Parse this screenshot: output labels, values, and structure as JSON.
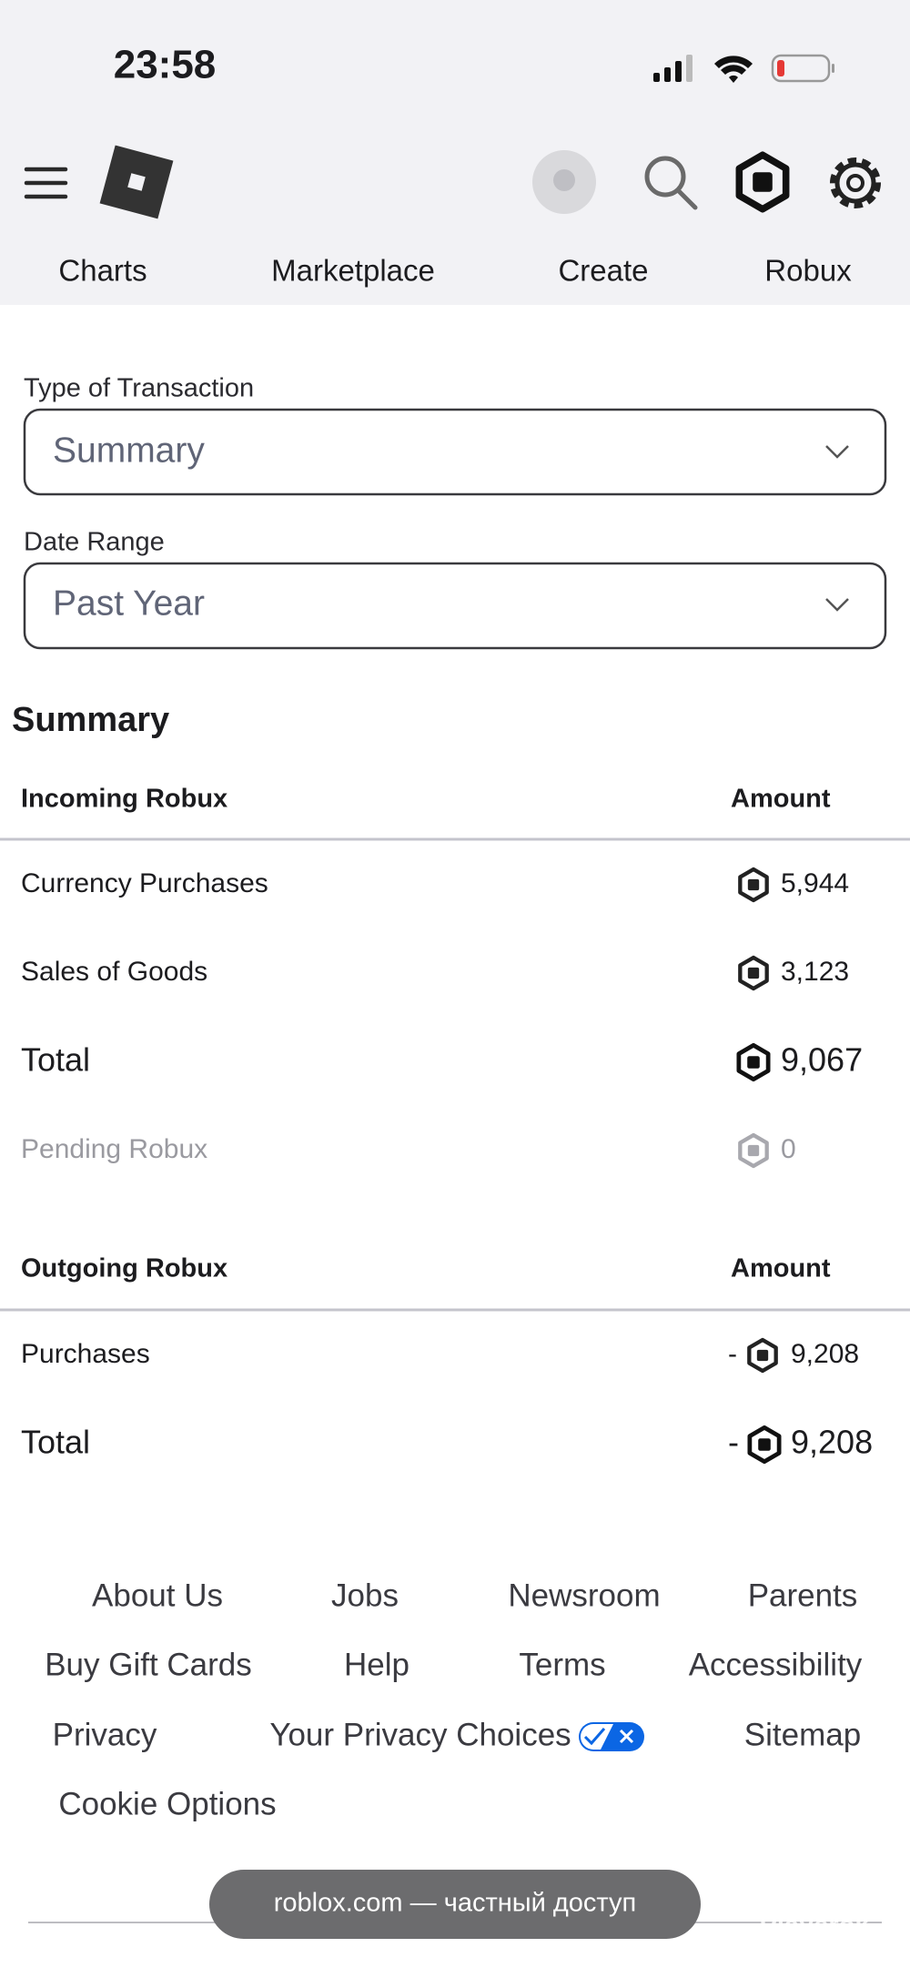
{
  "status_bar": {
    "time": "23:58"
  },
  "nav": [
    "Charts",
    "Marketplace",
    "Create",
    "Robux"
  ],
  "filters": [
    {
      "label": "Type of Transaction",
      "value": "Summary"
    },
    {
      "label": "Date Range",
      "value": "Past Year"
    }
  ],
  "summary": {
    "title": "Summary",
    "incoming": {
      "header": [
        "Incoming Robux",
        "Amount"
      ],
      "rows": [
        {
          "label": "Currency Purchases",
          "amount": "5,944"
        },
        {
          "label": "Sales of Goods",
          "amount": "3,123"
        }
      ],
      "total": {
        "label": "Total",
        "amount": "9,067"
      },
      "pending": {
        "label": "Pending Robux",
        "amount": "0"
      }
    },
    "outgoing": {
      "header": [
        "Outgoing Robux",
        "Amount"
      ],
      "rows": [
        {
          "label": "Purchases",
          "sign": "-",
          "amount": "9,208"
        }
      ],
      "total": {
        "label": "Total",
        "sign": "-",
        "amount": "9,208"
      }
    }
  },
  "footer": {
    "links": [
      "About Us",
      "Jobs",
      "Newsroom",
      "Parents",
      "Buy Gift Cards",
      "Help",
      "Terms",
      "Accessibility",
      "Privacy",
      "Your Privacy Choices",
      "Sitemap",
      "Cookie Options"
    ]
  },
  "toast": "roblox.com — частный доступ",
  "watermark": "Playerok"
}
